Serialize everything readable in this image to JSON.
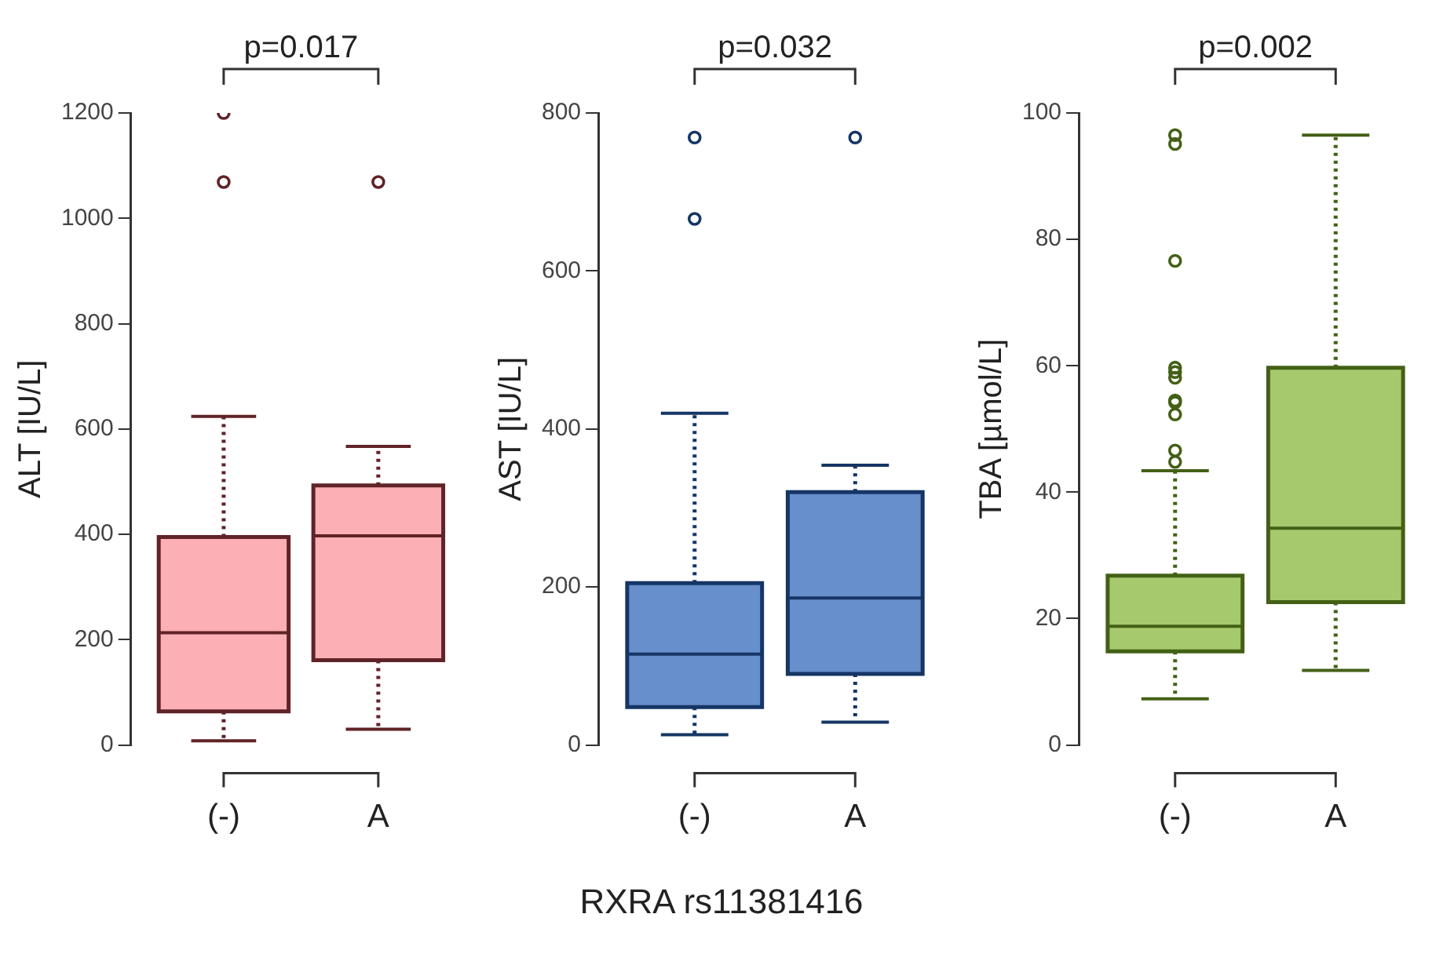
{
  "chart_data": [
    {
      "type": "box",
      "categories": [
        "(-)",
        "A"
      ],
      "ylabel": "ALT [IU/L]",
      "annotations": [
        "p=0.017"
      ],
      "ylim": [
        0,
        1200
      ],
      "yticks": [
        0,
        200,
        400,
        600,
        800,
        1000,
        1200
      ],
      "marker": "circle",
      "line_style": "dotted",
      "series": [
        {
          "color": "#fcb0b5",
          "boxes": [
            {
              "low": 8,
              "q1": 64,
              "median": 213,
              "q3": 395,
              "high": 624,
              "outliers": [
                1069,
                1200
              ]
            },
            {
              "low": 30,
              "q1": 161,
              "median": 397,
              "q3": 493,
              "high": 567,
              "outliers": [
                1069
              ]
            }
          ]
        }
      ]
    },
    {
      "type": "box",
      "categories": [
        "(-)",
        "A"
      ],
      "ylabel": "AST [IU/L]",
      "xlabel": "RXRA rs11381416",
      "annotations": [
        "p=0.032"
      ],
      "ylim": [
        0,
        800
      ],
      "yticks": [
        0,
        200,
        400,
        600,
        800
      ],
      "marker": "circle",
      "line_style": "dotted",
      "series": [
        {
          "color": "#678fcb",
          "boxes": [
            {
              "low": 13,
              "q1": 48,
              "median": 115,
              "q3": 205,
              "high": 420,
              "outliers": [
                666,
                769
              ]
            },
            {
              "low": 29,
              "q1": 90,
              "median": 186,
              "q3": 320,
              "high": 354,
              "outliers": [
                769
              ]
            }
          ]
        }
      ]
    },
    {
      "type": "box",
      "categories": [
        "(-)",
        "A"
      ],
      "ylabel": "TBA [µmol/L]",
      "annotations": [
        "p=0.002"
      ],
      "ylim": [
        0,
        100
      ],
      "yticks": [
        0,
        20,
        40,
        60,
        80,
        100
      ],
      "marker": "circle",
      "line_style": "dotted",
      "series": [
        {
          "color": "#a5c96c",
          "boxes": [
            {
              "low": 7.3,
              "q1": 14.8,
              "median": 18.8,
              "q3": 26.8,
              "high": 43.4,
              "outliers": [
                44.8,
                46.6,
                52.3,
                54.2,
                54.5,
                58.1,
                59,
                59.7,
                76.6,
                95.1,
                96.5
              ]
            },
            {
              "low": 11.8,
              "q1": 22.6,
              "median": 34.3,
              "q3": 59.7,
              "high": 96.5
            }
          ]
        }
      ]
    }
  ]
}
